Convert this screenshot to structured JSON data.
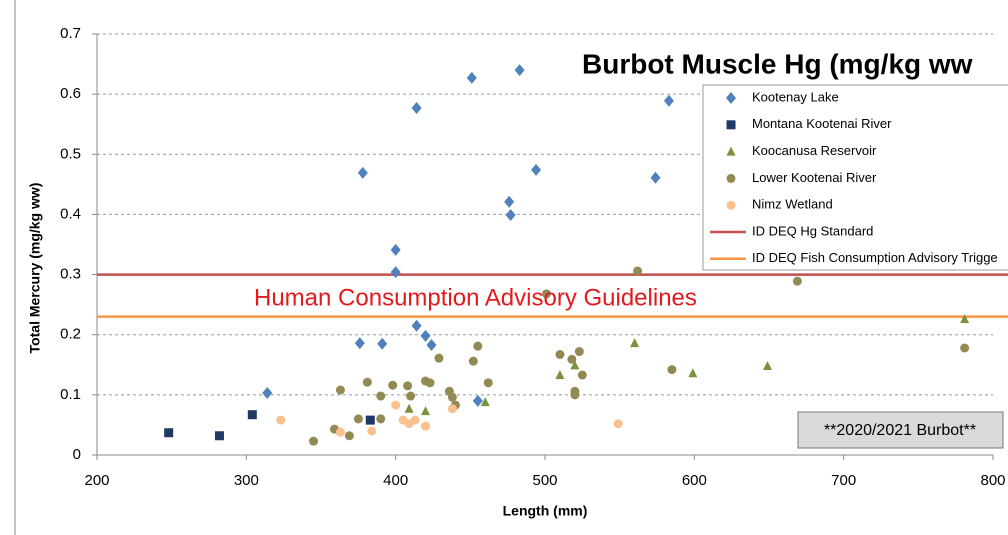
{
  "chart_data": {
    "type": "scatter",
    "title": "Burbot Muscle Hg (mg/kg ww",
    "x_label": "Length (mm)",
    "y_label": "Total Mercury (mg/kg ww)",
    "xlim": [
      200,
      800
    ],
    "xticks": [
      200,
      300,
      400,
      500,
      600,
      700,
      800
    ],
    "ylim": [
      0,
      0.7
    ],
    "yticks": [
      0,
      0.1,
      0.2,
      0.3,
      0.4,
      0.5,
      0.6,
      0.7
    ],
    "grid": true,
    "legend": "upper right",
    "series": [
      {
        "name": "Kootenay Lake",
        "color": "#4f81bd",
        "marker": "diamond",
        "x": [
          314,
          376,
          378,
          391,
          400,
          400,
          414,
          414,
          420,
          424,
          451,
          483,
          476,
          477,
          494,
          455,
          583,
          574
        ],
        "y": [
          0.103,
          0.186,
          0.469,
          0.185,
          0.341,
          0.304,
          0.577,
          0.215,
          0.198,
          0.183,
          0.627,
          0.64,
          0.421,
          0.399,
          0.474,
          0.09,
          0.589,
          0.461
        ]
      },
      {
        "name": "Montana Kootenai River",
        "color": "#1f3864",
        "marker": "square",
        "x": [
          248,
          282,
          304,
          383
        ],
        "y": [
          0.037,
          0.032,
          0.067,
          0.058
        ]
      },
      {
        "name": "Koocanusa Reservoir",
        "color": "#77933c",
        "marker": "triangle",
        "x": [
          409,
          420,
          460,
          510,
          520,
          560,
          599,
          649,
          781
        ],
        "y": [
          0.077,
          0.073,
          0.088,
          0.133,
          0.149,
          0.186,
          0.136,
          0.148,
          0.226
        ]
      },
      {
        "name": "Lower Kootenai River",
        "color": "#938953",
        "marker": "circle",
        "x": [
          345,
          359,
          363,
          369,
          375,
          381,
          390,
          390,
          398,
          408,
          410,
          420,
          423,
          429,
          436,
          438,
          440,
          462,
          452,
          455,
          501,
          510,
          518,
          520,
          520,
          523,
          525,
          562,
          585,
          669,
          781
        ],
        "y": [
          0.023,
          0.043,
          0.108,
          0.032,
          0.06,
          0.121,
          0.098,
          0.06,
          0.116,
          0.115,
          0.098,
          0.123,
          0.12,
          0.161,
          0.106,
          0.096,
          0.083,
          0.12,
          0.156,
          0.181,
          0.268,
          0.167,
          0.159,
          0.106,
          0.1,
          0.172,
          0.133,
          0.306,
          0.142,
          0.289,
          0.178
        ]
      },
      {
        "name": "Nimz Wetland",
        "color": "#fac090",
        "marker": "circle",
        "x": [
          323,
          363,
          384,
          400,
          405,
          409,
          413,
          420,
          438,
          549
        ],
        "y": [
          0.058,
          0.038,
          0.04,
          0.083,
          0.058,
          0.052,
          0.058,
          0.048,
          0.077,
          0.052
        ]
      }
    ],
    "reference_lines": [
      {
        "name": "ID DEQ Hg Standard",
        "value": 0.3,
        "color": "#c0504d"
      },
      {
        "name": "ID DEQ Fish Consumption Advisory Trigge",
        "value": 0.23,
        "color": "#f79646"
      }
    ],
    "annotations": [
      "Human Consumption Advisory Guidelines",
      "**2020/2021 Burbot**"
    ]
  }
}
